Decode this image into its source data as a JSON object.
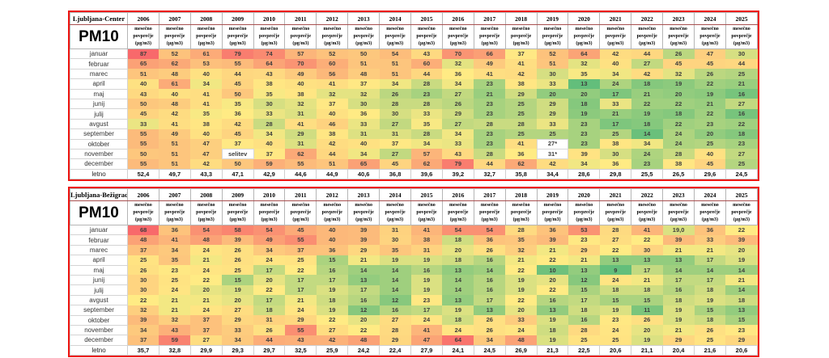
{
  "chart_data": [
    {
      "type": "heatmap",
      "station": "Ljubljana-Center",
      "pollutant": "PM10",
      "unit_header_lines": [
        "mesečno",
        "povprečje",
        "(µg/m3)"
      ],
      "years": [
        "2006",
        "2007",
        "2008",
        "2009",
        "2010",
        "2011",
        "2012",
        "2013",
        "2014",
        "2015",
        "2016",
        "2017",
        "2018",
        "2019",
        "2020",
        "2021",
        "2022",
        "2023",
        "2024",
        "2025"
      ],
      "rows": [
        {
          "label": "januar",
          "values": [
            87,
            52,
            61,
            79,
            74,
            57,
            52,
            50,
            54,
            43,
            70,
            66,
            37,
            52,
            64,
            42,
            44,
            26,
            47,
            30
          ]
        },
        {
          "label": "februar",
          "values": [
            65,
            62,
            53,
            55,
            64,
            70,
            60,
            51,
            51,
            60,
            32,
            49,
            41,
            51,
            32,
            40,
            27,
            45,
            45,
            44
          ]
        },
        {
          "label": "marec",
          "values": [
            51,
            48,
            40,
            44,
            43,
            49,
            56,
            48,
            51,
            44,
            36,
            41,
            42,
            30,
            35,
            34,
            42,
            32,
            26,
            25
          ]
        },
        {
          "label": "april",
          "values": [
            40,
            61,
            34,
            45,
            38,
            40,
            41,
            37,
            34,
            28,
            34,
            23,
            38,
            33,
            13,
            24,
            18,
            19,
            22,
            21
          ]
        },
        {
          "label": "maj",
          "values": [
            43,
            40,
            41,
            50,
            35,
            38,
            32,
            32,
            26,
            23,
            27,
            21,
            29,
            20,
            20,
            17,
            21,
            20,
            19,
            16
          ]
        },
        {
          "label": "junij",
          "values": [
            50,
            48,
            41,
            35,
            30,
            32,
            37,
            30,
            28,
            28,
            26,
            23,
            25,
            29,
            18,
            33,
            22,
            22,
            21,
            27
          ]
        },
        {
          "label": "julij",
          "values": [
            45,
            42,
            35,
            36,
            33,
            31,
            40,
            36,
            30,
            33,
            29,
            23,
            25,
            29,
            19,
            21,
            19,
            18,
            22,
            16
          ]
        },
        {
          "label": "avgust",
          "values": [
            33,
            41,
            38,
            42,
            28,
            41,
            46,
            33,
            27,
            35,
            27,
            28,
            28,
            33,
            23,
            17,
            18,
            22,
            23,
            22
          ]
        },
        {
          "label": "september",
          "values": [
            55,
            49,
            40,
            45,
            34,
            29,
            38,
            31,
            31,
            28,
            34,
            23,
            25,
            25,
            23,
            25,
            14,
            24,
            20,
            18
          ]
        },
        {
          "label": "oktober",
          "values": [
            55,
            51,
            47,
            37,
            40,
            31,
            42,
            40,
            37,
            34,
            33,
            23,
            41,
            "27*",
            23,
            38,
            34,
            24,
            25,
            23
          ]
        },
        {
          "label": "november",
          "values": [
            50,
            51,
            47,
            "selitev",
            37,
            62,
            44,
            34,
            27,
            57,
            43,
            28,
            36,
            "31*",
            39,
            30,
            24,
            28,
            40,
            27
          ]
        },
        {
          "label": "december",
          "values": [
            55,
            51,
            42,
            50,
            59,
            55,
            51,
            65,
            45,
            62,
            79,
            44,
            62,
            42,
            34,
            36,
            23,
            38,
            45,
            25
          ]
        }
      ],
      "annual": {
        "label": "letno",
        "values": [
          "52,4",
          "49,7",
          "43,3",
          "47,1",
          "42,9",
          "44,6",
          "44,9",
          "40,6",
          "36,8",
          "39,6",
          "39,2",
          "32,7",
          "35,8",
          "34,4",
          "28,6",
          "29,8",
          "25,5",
          "26,5",
          "29,6",
          "24,5"
        ]
      },
      "color_scale": {
        "low_green": "#63BE7B",
        "mid_yellow": "#FFEB84",
        "high_red": "#F8696B",
        "midpoint": "median"
      },
      "notes": "non-numeric cells (selitev, 27*, 31*) shown on white background"
    },
    {
      "type": "heatmap",
      "station": "Ljubljana-Bežigrad",
      "pollutant": "PM10",
      "unit_header_lines": [
        "mesečno",
        "povprečje",
        "(µg/m3)"
      ],
      "years": [
        "2006",
        "2007",
        "2008",
        "2009",
        "2010",
        "2011",
        "2012",
        "2013",
        "2014",
        "2015",
        "2016",
        "2017",
        "2018",
        "2019",
        "2020",
        "2021",
        "2022",
        "2023",
        "2024",
        "2025"
      ],
      "rows": [
        {
          "label": "januar",
          "values": [
            68,
            36,
            54,
            58,
            54,
            45,
            40,
            39,
            31,
            41,
            54,
            54,
            28,
            36,
            53,
            28,
            41,
            "19,0",
            36,
            22
          ]
        },
        {
          "label": "februar",
          "values": [
            48,
            41,
            48,
            39,
            49,
            55,
            40,
            39,
            30,
            38,
            18,
            36,
            35,
            39,
            23,
            27,
            22,
            39,
            33,
            39
          ]
        },
        {
          "label": "marec",
          "values": [
            37,
            34,
            24,
            26,
            34,
            37,
            36,
            29,
            35,
            31,
            20,
            26,
            32,
            21,
            29,
            22,
            30,
            21,
            21,
            20
          ]
        },
        {
          "label": "april",
          "values": [
            25,
            35,
            21,
            26,
            24,
            25,
            15,
            21,
            19,
            19,
            18,
            16,
            21,
            22,
            21,
            13,
            13,
            13,
            17,
            19
          ]
        },
        {
          "label": "maj",
          "values": [
            26,
            23,
            24,
            25,
            17,
            22,
            16,
            14,
            14,
            16,
            13,
            14,
            22,
            10,
            13,
            9,
            17,
            14,
            14,
            14
          ]
        },
        {
          "label": "junij",
          "values": [
            30,
            25,
            22,
            15,
            20,
            17,
            17,
            13,
            14,
            19,
            14,
            16,
            19,
            20,
            12,
            24,
            21,
            17,
            17,
            21
          ]
        },
        {
          "label": "julij",
          "values": [
            30,
            24,
            20,
            19,
            22,
            17,
            19,
            17,
            14,
            19,
            14,
            16,
            19,
            22,
            15,
            18,
            18,
            16,
            18,
            14
          ]
        },
        {
          "label": "avgust",
          "values": [
            22,
            21,
            21,
            20,
            17,
            21,
            18,
            16,
            12,
            23,
            13,
            17,
            22,
            16,
            17,
            15,
            15,
            18,
            19,
            18
          ]
        },
        {
          "label": "september",
          "values": [
            32,
            21,
            24,
            27,
            18,
            24,
            19,
            12,
            16,
            17,
            19,
            13,
            20,
            13,
            18,
            19,
            11,
            19,
            15,
            13
          ]
        },
        {
          "label": "oktober",
          "values": [
            39,
            32,
            37,
            29,
            31,
            29,
            22,
            20,
            27,
            24,
            18,
            26,
            33,
            19,
            16,
            23,
            26,
            19,
            18,
            15
          ]
        },
        {
          "label": "november",
          "values": [
            34,
            43,
            37,
            33,
            26,
            55,
            27,
            22,
            28,
            41,
            24,
            26,
            24,
            18,
            28,
            24,
            20,
            21,
            26,
            23
          ]
        },
        {
          "label": "december",
          "values": [
            37,
            59,
            27,
            34,
            44,
            43,
            42,
            48,
            29,
            47,
            64,
            34,
            48,
            19,
            25,
            25,
            19,
            29,
            25,
            29
          ]
        }
      ],
      "annual": {
        "label": "letno",
        "values": [
          "35,7",
          "32,8",
          "29,9",
          "29,3",
          "29,7",
          "32,5",
          "25,9",
          "24,2",
          "22,4",
          "27,9",
          "24,1",
          "24,5",
          "26,9",
          "21,3",
          "22,5",
          "20,6",
          "21,1",
          "20,4",
          "21,6",
          "20,6"
        ]
      },
      "color_scale": {
        "low_green": "#63BE7B",
        "mid_yellow": "#FFEB84",
        "high_red": "#F8696B",
        "midpoint": "median"
      },
      "notes": ""
    }
  ]
}
